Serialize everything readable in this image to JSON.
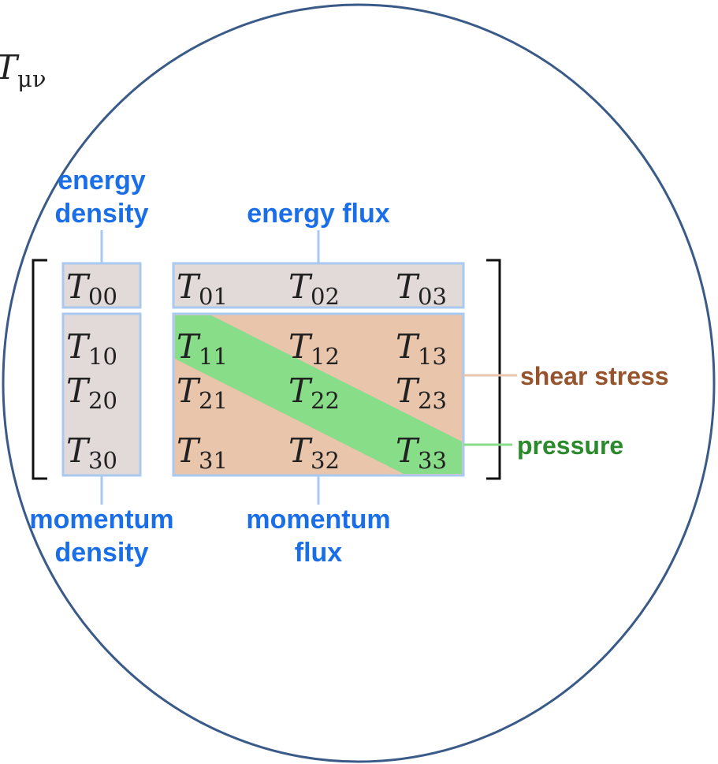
{
  "header": {
    "symbol": {
      "base": "T",
      "sub": "μν"
    }
  },
  "labels": {
    "energy_density": [
      "energy",
      "density"
    ],
    "energy_flux": "energy flux",
    "momentum_density": [
      "momentum",
      "density"
    ],
    "momentum_flux": [
      "momentum",
      "flux"
    ],
    "shear_stress": "shear stress",
    "pressure": "pressure"
  },
  "matrix": {
    "rows": [
      [
        {
          "base": "T",
          "sub": "00"
        },
        {
          "base": "T",
          "sub": "01"
        },
        {
          "base": "T",
          "sub": "02"
        },
        {
          "base": "T",
          "sub": "03"
        }
      ],
      [
        {
          "base": "T",
          "sub": "10"
        },
        {
          "base": "T",
          "sub": "11"
        },
        {
          "base": "T",
          "sub": "12"
        },
        {
          "base": "T",
          "sub": "13"
        }
      ],
      [
        {
          "base": "T",
          "sub": "20"
        },
        {
          "base": "T",
          "sub": "21"
        },
        {
          "base": "T",
          "sub": "22"
        },
        {
          "base": "T",
          "sub": "23"
        }
      ],
      [
        {
          "base": "T",
          "sub": "30"
        },
        {
          "base": "T",
          "sub": "31"
        },
        {
          "base": "T",
          "sub": "32"
        },
        {
          "base": "T",
          "sub": "33"
        }
      ]
    ]
  }
}
